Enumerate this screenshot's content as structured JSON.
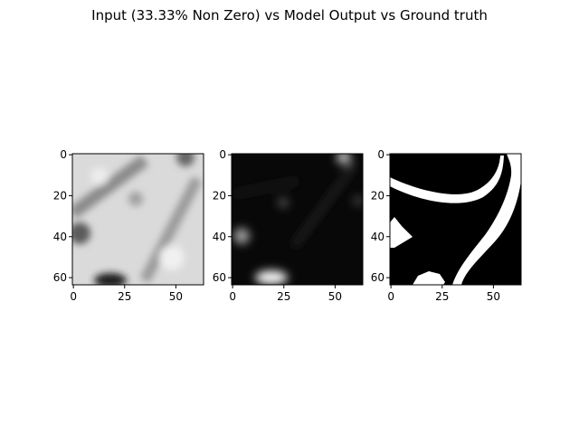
{
  "figure": {
    "title": "Input (33.33% Non Zero) vs Model Output vs Ground truth"
  },
  "chart_data": [
    {
      "type": "heatmap",
      "colormap": "gray",
      "grid": false,
      "xlim": [
        0,
        63
      ],
      "ylim": [
        63,
        0
      ],
      "xticks": [
        0,
        25,
        50
      ],
      "yticks": [
        0,
        20,
        40,
        60
      ],
      "description_values": {
        "background": 0.85,
        "features": [
          {
            "kind": "band",
            "x0": 0,
            "y0": 28,
            "x1": 35,
            "y1": 3,
            "value": 0.55
          },
          {
            "kind": "band",
            "x0": 60,
            "y0": 12,
            "x1": 35,
            "y1": 62,
            "value": 0.6
          },
          {
            "kind": "blob",
            "x": 3,
            "y": 38,
            "value": 0.3
          },
          {
            "kind": "blob",
            "x": 18,
            "y": 62,
            "value": 0.15
          },
          {
            "kind": "blob",
            "x": 55,
            "y": 2,
            "value": 0.4
          }
        ]
      }
    },
    {
      "type": "heatmap",
      "colormap": "gray",
      "grid": false,
      "xlim": [
        0,
        63
      ],
      "ylim": [
        63,
        0
      ],
      "xticks": [
        0,
        25,
        50
      ],
      "yticks": [
        0,
        20,
        40,
        60
      ],
      "description_values": {
        "background": 0.03,
        "features": [
          {
            "kind": "blob",
            "x": 20,
            "y": 60,
            "value": 0.95
          },
          {
            "kind": "blob",
            "x": 5,
            "y": 40,
            "value": 0.6
          },
          {
            "kind": "blob",
            "x": 55,
            "y": 2,
            "value": 0.7
          },
          {
            "kind": "blob",
            "x": 25,
            "y": 24,
            "value": 0.3
          },
          {
            "kind": "band",
            "x0": 60,
            "y0": 5,
            "x1": 30,
            "y1": 45,
            "value": 0.12
          }
        ]
      }
    },
    {
      "type": "heatmap",
      "colormap": "gray",
      "grid": false,
      "xlim": [
        0,
        63
      ],
      "ylim": [
        63,
        0
      ],
      "xticks": [
        0,
        25,
        50
      ],
      "yticks": [
        0,
        20,
        40,
        60
      ],
      "description_values": {
        "background": 0,
        "regions": [
          {
            "kind": "curve-band",
            "points": [
              [
                0,
                13
              ],
              [
                15,
                19
              ],
              [
                30,
                21
              ],
              [
                45,
                16
              ],
              [
                55,
                6
              ]
            ],
            "value": 1
          },
          {
            "kind": "curve-band",
            "points": [
              [
                63,
                2
              ],
              [
                58,
                25
              ],
              [
                48,
                38
              ],
              [
                37,
                50
              ],
              [
                33,
                63
              ]
            ],
            "value": 1
          },
          {
            "kind": "patch",
            "points": [
              [
                1,
                32
              ],
              [
                6,
                33
              ],
              [
                11,
                40
              ],
              [
                7,
                42
              ],
              [
                1,
                45
              ]
            ],
            "value": 1
          },
          {
            "kind": "patch",
            "points": [
              [
                10,
                63
              ],
              [
                14,
                58
              ],
              [
                20,
                57
              ],
              [
                25,
                61
              ],
              [
                23,
                63
              ]
            ],
            "value": 1
          }
        ]
      }
    }
  ]
}
